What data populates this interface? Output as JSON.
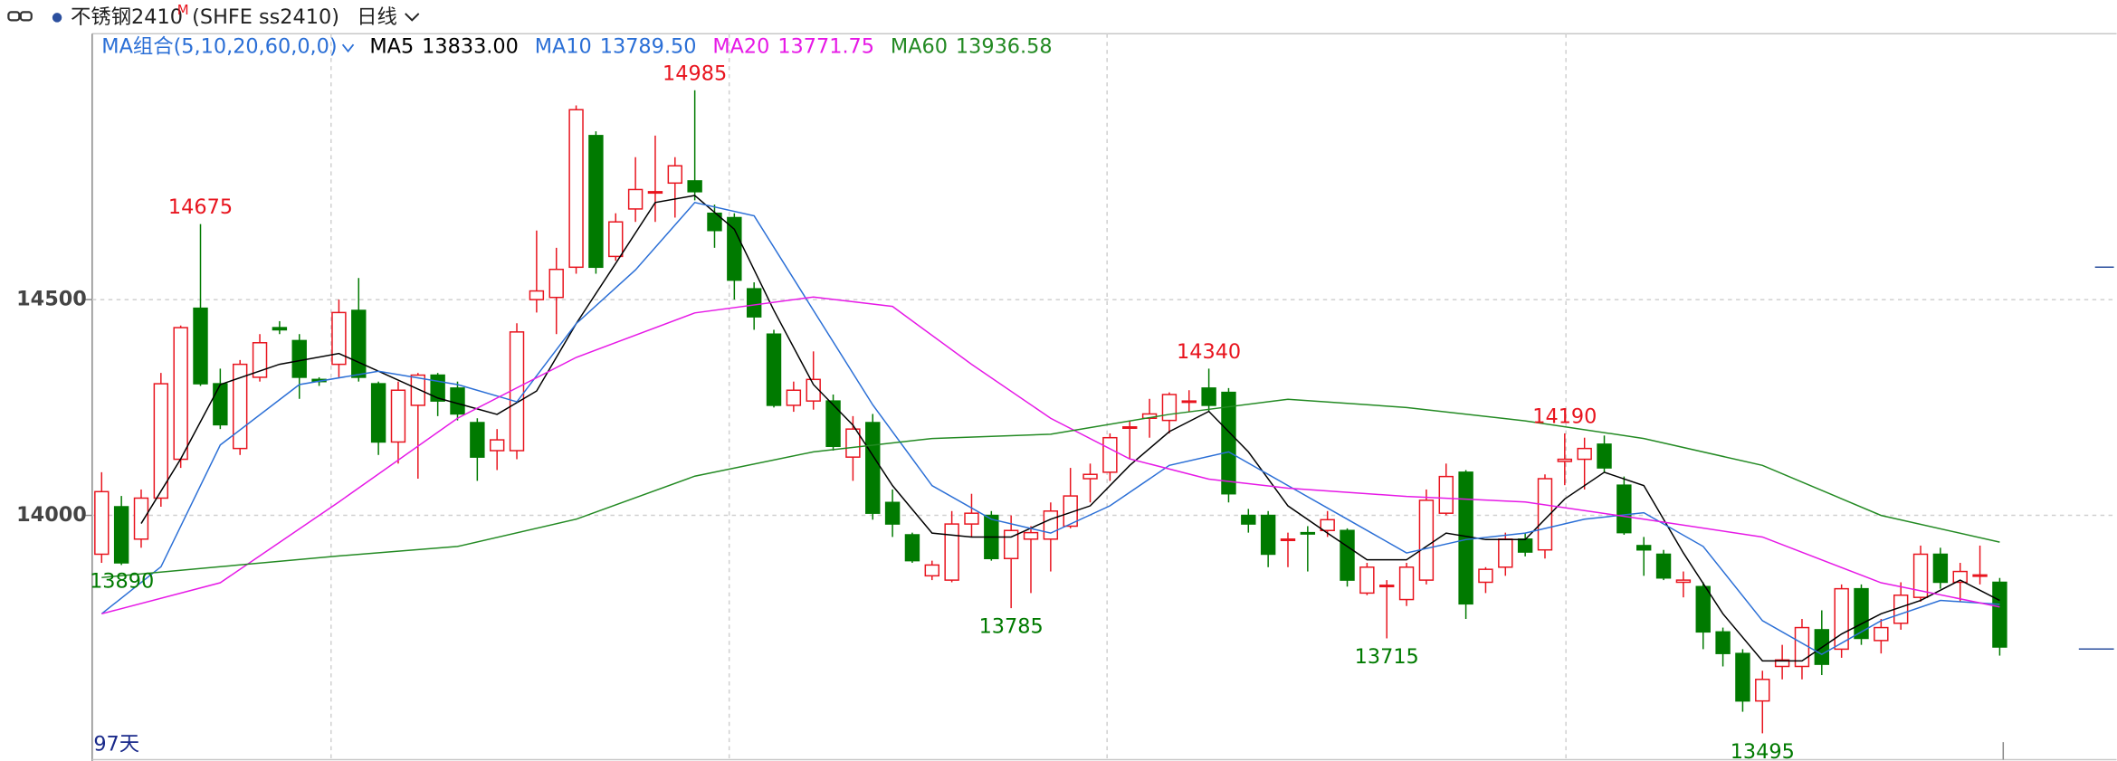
{
  "header": {
    "title": "不锈钢2410",
    "superscript": "M",
    "code": "(SHFE ss2410)",
    "period": "日线"
  },
  "chart_data": {
    "type": "candlestick",
    "ylim": [
      13434,
      15116
    ],
    "yticks": [
      14000,
      14500
    ],
    "grid": true,
    "up_color": "#e8141e",
    "down_color": "#007a00",
    "open": [
      13910,
      14020,
      13945,
      14040,
      14130,
      14480,
      14305,
      14155,
      14320,
      14435,
      14405,
      14315,
      14350,
      14475,
      14305,
      14170,
      14255,
      14325,
      14295,
      14215,
      14150,
      14150,
      14500,
      14505,
      14575,
      14880,
      14600,
      14710,
      14750,
      14770,
      14775,
      14700,
      14690,
      14525,
      14420,
      14255,
      14265,
      14265,
      14135,
      14215,
      14030,
      13955,
      13860,
      13850,
      13980,
      14000,
      13900,
      13945,
      13945,
      13975,
      14085,
      14100,
      14205,
      14225,
      14220,
      14265,
      14295,
      14285,
      14000,
      14000,
      13945,
      13960,
      13965,
      13965,
      13820,
      13838,
      13805,
      13850,
      14005,
      14100,
      13845,
      13880,
      13945,
      13920,
      14125,
      14130,
      14165,
      14070,
      13930,
      13910,
      13845,
      13835,
      13730,
      13680,
      13570,
      13650,
      13650,
      13735,
      13690,
      13830,
      13710,
      13750,
      13810,
      13910,
      13845,
      13860,
      13845
    ],
    "high": [
      14100,
      14045,
      14060,
      14330,
      14440,
      14675,
      14340,
      14360,
      14420,
      14450,
      14420,
      14320,
      14500,
      14550,
      14310,
      14310,
      14330,
      14330,
      14310,
      14225,
      14200,
      14445,
      14660,
      14620,
      14950,
      14890,
      14700,
      14830,
      14880,
      14830,
      14985,
      14720,
      14700,
      14540,
      14430,
      14310,
      14380,
      14280,
      14230,
      14235,
      14060,
      13960,
      13895,
      14010,
      14050,
      14010,
      14000,
      13975,
      14030,
      14110,
      14120,
      14190,
      14220,
      14270,
      14285,
      14290,
      14340,
      14295,
      14015,
      14010,
      13960,
      13975,
      14010,
      13970,
      13890,
      13850,
      13890,
      14060,
      14120,
      14105,
      13880,
      13960,
      13960,
      14095,
      14190,
      14180,
      14185,
      14090,
      13950,
      13920,
      13870,
      13845,
      13740,
      13690,
      13640,
      13700,
      13760,
      13780,
      13840,
      13840,
      13760,
      13845,
      13930,
      13925,
      13890,
      13930,
      13855
    ],
    "low": [
      13890,
      13885,
      13925,
      14020,
      14110,
      14300,
      14200,
      14140,
      14310,
      14420,
      14270,
      14300,
      14320,
      14310,
      14140,
      14120,
      14085,
      14230,
      14220,
      14080,
      14105,
      14130,
      14470,
      14420,
      14560,
      14560,
      14590,
      14680,
      14680,
      14690,
      14730,
      14620,
      14500,
      14430,
      14250,
      14240,
      14245,
      14150,
      14080,
      13990,
      13950,
      13890,
      13850,
      13845,
      13950,
      13895,
      13785,
      13820,
      13870,
      13970,
      14030,
      14080,
      14130,
      14180,
      14190,
      14240,
      14240,
      14030,
      13960,
      13880,
      13880,
      13870,
      13950,
      13835,
      13815,
      13715,
      13790,
      13840,
      14000,
      13760,
      13820,
      13860,
      13905,
      13900,
      14070,
      14060,
      14100,
      13955,
      13860,
      13850,
      13810,
      13690,
      13650,
      13545,
      13495,
      13620,
      13620,
      13630,
      13670,
      13700,
      13680,
      13735,
      13800,
      13830,
      13800,
      13840,
      13675
    ],
    "close": [
      14055,
      13890,
      14040,
      14305,
      14435,
      14305,
      14210,
      14350,
      14400,
      14430,
      14320,
      14310,
      14470,
      14320,
      14170,
      14290,
      14325,
      14265,
      14235,
      14135,
      14175,
      14425,
      14520,
      14570,
      14940,
      14575,
      14680,
      14755,
      14750,
      14810,
      14750,
      14660,
      14545,
      14460,
      14255,
      14290,
      14315,
      14160,
      14200,
      14005,
      13980,
      13895,
      13885,
      13980,
      14005,
      13900,
      13965,
      13960,
      14010,
      14045,
      14095,
      14180,
      14205,
      14235,
      14280,
      14265,
      14255,
      14050,
      13980,
      13910,
      13945,
      13958,
      13990,
      13850,
      13880,
      13838,
      13880,
      14035,
      14090,
      13795,
      13875,
      13945,
      13915,
      14085,
      14130,
      14155,
      14110,
      13960,
      13920,
      13855,
      13850,
      13730,
      13680,
      13570,
      13620,
      13665,
      13740,
      13655,
      13830,
      13715,
      13740,
      13815,
      13910,
      13845,
      13870,
      13862,
      13695
    ],
    "series": [
      {
        "name": "MA5",
        "color": "#000000",
        "x": [
          2,
          4,
          6,
          9,
          12,
          14,
          17,
          20,
          22,
          24,
          26,
          28,
          30,
          32,
          34,
          36,
          38,
          40,
          42,
          44,
          46,
          48,
          50,
          52,
          54,
          56,
          58,
          60,
          62,
          64,
          66,
          68,
          70,
          72,
          74,
          76,
          78,
          80,
          82,
          84,
          86,
          88,
          90,
          92,
          94,
          96
        ],
        "values": [
          13981,
          14131,
          14303,
          14350,
          14375,
          14334,
          14272,
          14234,
          14288,
          14444,
          14584,
          14725,
          14741,
          14663,
          14475,
          14303,
          14209,
          14069,
          13959,
          13950,
          13950,
          13991,
          14022,
          14116,
          14194,
          14241,
          14147,
          14022,
          13959,
          13897,
          13897,
          13959,
          13944,
          13944,
          14038,
          14100,
          14069,
          13913,
          13772,
          13663,
          13663,
          13725,
          13772,
          13803,
          13850,
          13803
        ]
      },
      {
        "name": "MA10",
        "color": "#2b6fd6",
        "x": [
          0,
          3,
          6,
          10,
          14,
          18,
          21,
          24,
          27,
          30,
          33,
          36,
          39,
          42,
          45,
          48,
          51,
          54,
          57,
          60,
          63,
          66,
          69,
          72,
          75,
          78,
          81,
          84,
          87,
          90,
          93,
          96
        ],
        "values": [
          13772,
          13881,
          14163,
          14303,
          14334,
          14303,
          14263,
          14444,
          14569,
          14725,
          14694,
          14475,
          14256,
          14069,
          13991,
          13959,
          14022,
          14116,
          14147,
          14069,
          13991,
          13913,
          13944,
          13959,
          13991,
          14006,
          13928,
          13756,
          13678,
          13756,
          13803,
          13794
        ]
      },
      {
        "name": "MA20",
        "color": "#e619e6",
        "x": [
          0,
          6,
          12,
          18,
          24,
          30,
          36,
          40,
          44,
          48,
          52,
          56,
          60,
          66,
          72,
          78,
          84,
          90,
          96
        ],
        "values": [
          13772,
          13844,
          14031,
          14225,
          14366,
          14469,
          14506,
          14484,
          14350,
          14225,
          14131,
          14084,
          14063,
          14044,
          14031,
          13991,
          13950,
          13844,
          13788
        ]
      },
      {
        "name": "MA60",
        "color": "#238a23",
        "x": [
          0,
          6,
          12,
          18,
          24,
          30,
          36,
          42,
          48,
          54,
          60,
          66,
          72,
          78,
          84,
          90,
          96
        ],
        "values": [
          13856,
          13881,
          13906,
          13928,
          13991,
          14091,
          14147,
          14178,
          14188,
          14234,
          14269,
          14250,
          14219,
          14178,
          14116,
          14000,
          13938
        ]
      }
    ],
    "ma_legend": {
      "label": "MA组合(5,10,20,60,0,0)",
      "values": [
        "13833.00",
        "13789.50",
        "13771.75",
        "13936.58"
      ]
    },
    "annotations": [
      {
        "text": "14675",
        "index": 5,
        "color": "#e8141e"
      },
      {
        "text": "14985",
        "index": 30,
        "color": "#e8141e"
      },
      {
        "text": "14340",
        "index": 56,
        "color": "#e8141e"
      },
      {
        "text": "14190",
        "index": 74,
        "color": "#e8141e"
      },
      {
        "text": "13890",
        "index": 0,
        "color": "#007a00"
      },
      {
        "text": "13785",
        "index": 46,
        "color": "#007a00"
      },
      {
        "text": "13715",
        "index": 65,
        "color": "#007a00"
      },
      {
        "text": "13495",
        "index": 84,
        "color": "#007a00"
      }
    ],
    "footer": "97天"
  }
}
